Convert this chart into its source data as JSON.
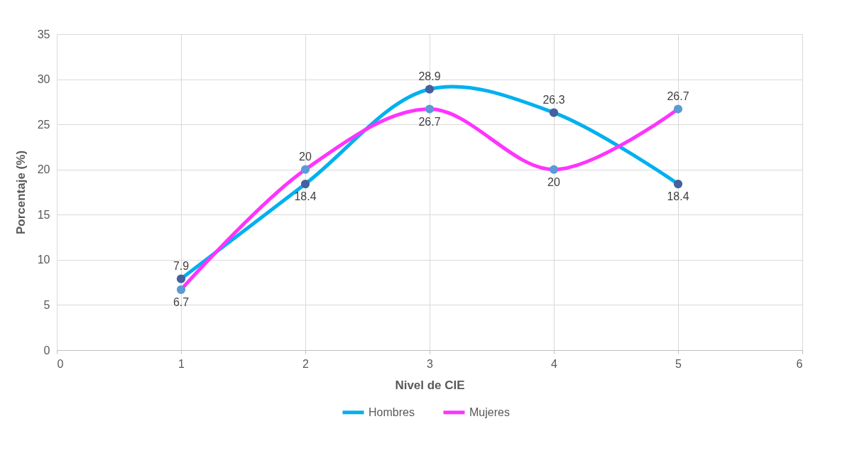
{
  "chart_data": {
    "type": "line",
    "xlabel": "Nivel de CIE",
    "ylabel": "Porcentaje (%)",
    "x": [
      1,
      2,
      3,
      4,
      5
    ],
    "series": [
      {
        "name": "Hombres",
        "color": "#00b0f0",
        "colors": [
          "#44609e",
          "#44609e",
          "#44609e",
          "#44609e",
          "#44609e"
        ],
        "values": [
          7.9,
          18.4,
          28.9,
          26.3,
          18.4
        ]
      },
      {
        "name": "Mujeres",
        "color": "#ff33ff",
        "colors": [
          "#5b9bd5",
          "#5b9bd5",
          "#5b9bd5",
          "#5b9bd5",
          "#5b9bd5"
        ],
        "values": [
          6.7,
          20,
          26.7,
          20,
          26.7
        ]
      }
    ],
    "xlim": [
      0,
      6
    ],
    "xticks": [
      0,
      1,
      2,
      3,
      4,
      5,
      6
    ],
    "ylim": [
      0,
      35
    ],
    "yticks": [
      0,
      5,
      10,
      15,
      20,
      25,
      30,
      35
    ],
    "grid": true,
    "legend": "bottom",
    "marker": "circle",
    "line_style": "solid",
    "data_labels": true
  }
}
